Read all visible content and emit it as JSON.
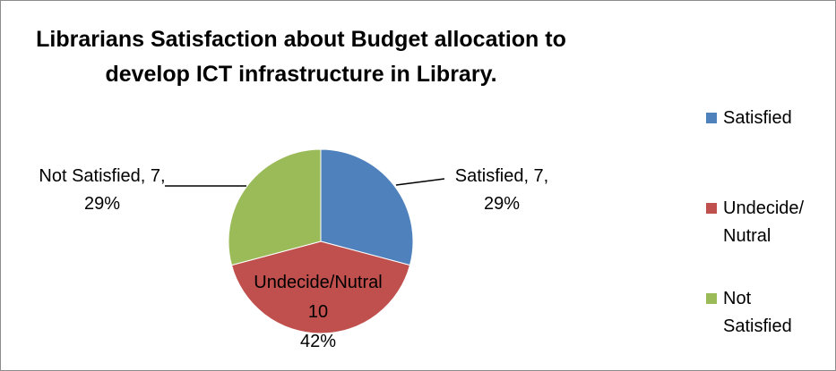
{
  "chart_data": {
    "type": "pie",
    "title_lines": [
      "Librarians Satisfaction about Budget allocation to",
      "develop ICT infrastructure in Library."
    ],
    "slices": [
      {
        "name": "Satisfied",
        "value": 7,
        "percent": "29%",
        "color": "#4f81bd",
        "label_lines": [
          "Satisfied, 7,",
          "29%"
        ]
      },
      {
        "name": "Undecide/Nutral",
        "value": 10,
        "percent": "42%",
        "color": "#c0504d",
        "label_lines": [
          "Undecide/Nutral",
          "10",
          "42%"
        ]
      },
      {
        "name": "Not Satisfied",
        "value": 7,
        "percent": "29%",
        "color": "#9bbb59",
        "label_lines": [
          "Not Satisfied, 7,",
          "29%"
        ]
      }
    ],
    "legend": {
      "position": "right",
      "entries": [
        {
          "lines": [
            "Satisfied"
          ],
          "color": "#4f81bd"
        },
        {
          "lines": [
            "Undecide/",
            "Nutral"
          ],
          "color": "#c0504d"
        },
        {
          "lines": [
            "Not",
            "Satisfied"
          ],
          "color": "#9bbb59"
        }
      ]
    }
  }
}
